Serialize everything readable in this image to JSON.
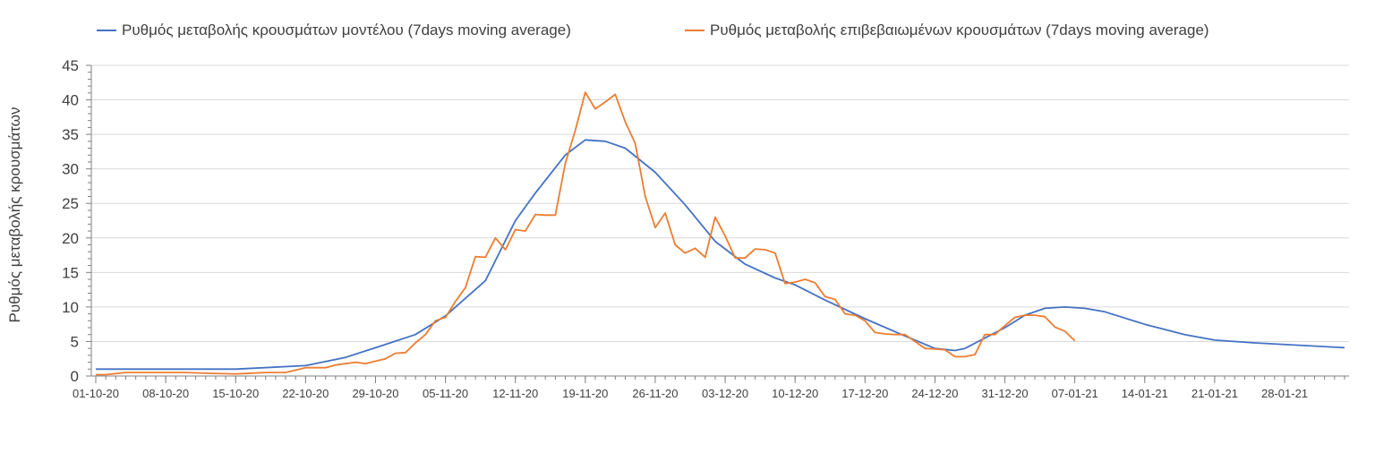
{
  "chart_data": {
    "type": "line",
    "title": "",
    "xlabel": "",
    "ylabel": "Ρυθμός μεταβολής κρουσμάτων",
    "ylim": [
      0,
      45
    ],
    "y_ticks": [
      0,
      5,
      10,
      15,
      20,
      25,
      30,
      35,
      40,
      45
    ],
    "x_ticks": [
      "01-10-20",
      "08-10-20",
      "15-10-20",
      "22-10-20",
      "29-10-20",
      "05-11-20",
      "12-11-20",
      "19-11-20",
      "26-11-20",
      "03-12-20",
      "10-12-20",
      "17-12-20",
      "24-12-20",
      "31-12-20",
      "07-01-21",
      "14-01-21",
      "21-01-21",
      "28-01-21"
    ],
    "x_start": "01-10-20",
    "x_end": "03-02-21",
    "grid": true,
    "legend_position": "top",
    "series": [
      {
        "name": "Ρυθμός μεταβολής κρουσμάτων μοντέλου (7days moving average)",
        "color": "#4472c4",
        "x": [
          "01-10-20",
          "08-10-20",
          "15-10-20",
          "22-10-20",
          "26-10-20",
          "29-10-20",
          "02-11-20",
          "05-11-20",
          "09-11-20",
          "12-11-20",
          "14-11-20",
          "17-11-20",
          "19-11-20",
          "21-11-20",
          "23-11-20",
          "26-11-20",
          "29-11-20",
          "02-12-20",
          "05-12-20",
          "08-12-20",
          "10-12-20",
          "13-12-20",
          "17-12-20",
          "21-12-20",
          "24-12-20",
          "26-12-20",
          "27-12-20",
          "29-12-20",
          "31-12-20",
          "02-01-21",
          "04-01-21",
          "06-01-21",
          "08-01-21",
          "10-01-21",
          "14-01-21",
          "18-01-21",
          "21-01-21",
          "25-01-21",
          "03-02-21"
        ],
        "y": [
          1.0,
          1.0,
          1.0,
          1.5,
          2.7,
          4.1,
          6.0,
          8.7,
          13.8,
          22.5,
          26.5,
          32.0,
          34.2,
          34.0,
          33.0,
          29.5,
          24.8,
          19.5,
          16.2,
          14.2,
          13.2,
          11.0,
          8.3,
          5.8,
          4.0,
          3.7,
          4.0,
          5.5,
          7.0,
          8.8,
          9.8,
          10.0,
          9.8,
          9.3,
          7.5,
          6.0,
          5.2,
          4.8,
          4.1
        ]
      },
      {
        "name": "Ρυθμός μεταβολής επιβεβαιωμένων κρουσμάτων (7days moving average)",
        "color": "#ed7d31",
        "x": [
          "01-10-20",
          "02-10-20",
          "04-10-20",
          "07-10-20",
          "10-10-20",
          "12-10-20",
          "15-10-20",
          "18-10-20",
          "20-10-20",
          "22-10-20",
          "24-10-20",
          "25-10-20",
          "27-10-20",
          "28-10-20",
          "30-10-20",
          "31-10-20",
          "01-11-20",
          "02-11-20",
          "03-11-20",
          "04-11-20",
          "05-11-20",
          "06-11-20",
          "07-11-20",
          "08-11-20",
          "09-11-20",
          "10-11-20",
          "11-11-20",
          "12-11-20",
          "13-11-20",
          "14-11-20",
          "15-11-20",
          "16-11-20",
          "17-11-20",
          "18-11-20",
          "19-11-20",
          "20-11-20",
          "21-11-20",
          "22-11-20",
          "23-11-20",
          "24-11-20",
          "25-11-20",
          "26-11-20",
          "27-11-20",
          "28-11-20",
          "29-11-20",
          "30-11-20",
          "01-12-20",
          "02-12-20",
          "03-12-20",
          "04-12-20",
          "05-12-20",
          "06-12-20",
          "07-12-20",
          "08-12-20",
          "09-12-20",
          "10-12-20",
          "11-12-20",
          "12-12-20",
          "13-12-20",
          "14-12-20",
          "15-12-20",
          "16-12-20",
          "17-12-20",
          "18-12-20",
          "19-12-20",
          "20-12-20",
          "21-12-20",
          "22-12-20",
          "23-12-20",
          "24-12-20",
          "25-12-20",
          "26-12-20",
          "27-12-20",
          "28-12-20",
          "29-12-20",
          "30-12-20",
          "31-12-20",
          "01-01-21",
          "02-01-21",
          "03-01-21",
          "04-01-21",
          "05-01-21",
          "06-01-21",
          "07-01-21"
        ],
        "y": [
          0.2,
          0.2,
          0.5,
          0.5,
          0.5,
          0.4,
          0.3,
          0.5,
          0.5,
          1.2,
          1.2,
          1.6,
          2.0,
          1.8,
          2.5,
          3.3,
          3.4,
          4.8,
          6.0,
          8.0,
          8.5,
          10.8,
          12.8,
          17.3,
          17.2,
          20.0,
          18.3,
          21.2,
          21.0,
          23.4,
          23.3,
          23.3,
          30.8,
          35.6,
          41.1,
          38.7,
          39.7,
          40.8,
          36.8,
          33.7,
          26.0,
          21.5,
          23.6,
          19.0,
          17.8,
          18.5,
          17.2,
          23.0,
          20.3,
          17.1,
          17.1,
          18.4,
          18.3,
          17.8,
          13.4,
          13.6,
          14.0,
          13.5,
          11.5,
          11.1,
          9.0,
          8.8,
          8.0,
          6.3,
          6.1,
          6.0,
          6.0,
          5.0,
          4.0,
          3.9,
          3.8,
          2.8,
          2.8,
          3.1,
          6.0,
          6.0,
          7.3,
          8.5,
          8.8,
          8.8,
          8.6,
          7.1,
          6.5,
          5.1
        ]
      }
    ]
  }
}
